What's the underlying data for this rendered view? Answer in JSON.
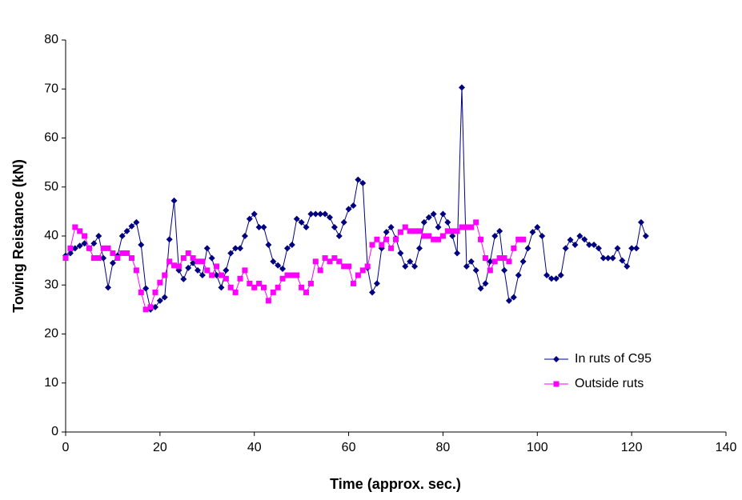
{
  "chart_data": {
    "type": "line",
    "xlabel": "Time (approx. sec.)",
    "ylabel": "Towing Reistance (kN)",
    "xlim": [
      0,
      140
    ],
    "xticks": [
      0,
      20,
      40,
      60,
      80,
      100,
      120,
      140
    ],
    "ylim": [
      0,
      80
    ],
    "yticks": [
      0,
      10,
      20,
      30,
      40,
      50,
      60,
      70,
      80
    ],
    "legend": "lower right",
    "series": [
      {
        "name": "In ruts of C95",
        "color": "#000080",
        "marker": "diamond",
        "x": [
          0,
          1,
          2,
          3,
          4,
          5,
          6,
          7,
          8,
          9,
          10,
          11,
          12,
          13,
          14,
          15,
          16,
          17,
          18,
          19,
          20,
          21,
          22,
          23,
          24,
          25,
          26,
          27,
          28,
          29,
          30,
          31,
          32,
          33,
          34,
          35,
          36,
          37,
          38,
          39,
          40,
          41,
          42,
          43,
          44,
          45,
          46,
          47,
          48,
          49,
          50,
          51,
          52,
          53,
          54,
          55,
          56,
          57,
          58,
          59,
          60,
          61,
          62,
          63,
          64,
          65,
          66,
          67,
          68,
          69,
          70,
          71,
          72,
          73,
          74,
          75,
          76,
          77,
          78,
          79,
          80,
          81,
          82,
          83,
          84,
          85,
          86,
          87,
          88,
          89,
          90,
          91,
          92,
          93,
          94,
          95,
          96,
          97,
          98,
          99,
          100,
          101,
          102,
          103,
          104,
          105,
          106,
          107,
          108,
          109,
          110,
          111,
          112,
          113,
          114,
          115,
          116,
          117,
          118,
          119,
          120,
          121,
          122,
          123
        ],
        "values": [
          36,
          36.5,
          37.5,
          38,
          38.5,
          37.5,
          38.5,
          40,
          35.5,
          29.5,
          34.5,
          36,
          40,
          41,
          42,
          42.8,
          38.2,
          29.3,
          25,
          25.5,
          26.8,
          27.5,
          39.3,
          47.2,
          33,
          31.2,
          33.5,
          34.5,
          33,
          32,
          37.5,
          35.5,
          32,
          29.5,
          33,
          36.5,
          37.5,
          37.5,
          40,
          43.5,
          44.5,
          41.8,
          41.8,
          38.2,
          34.8,
          34,
          33.3,
          37.5,
          38.2,
          43.5,
          42.8,
          41.8,
          44.5,
          44.5,
          44.5,
          44.5,
          43.8,
          41.8,
          40,
          42.8,
          45.5,
          46.2,
          51.5,
          50.8,
          33.5,
          28.5,
          30.3,
          37.5,
          40.8,
          41.8,
          39.5,
          36.5,
          33.8,
          34.8,
          33.8,
          37.5,
          42.8,
          43.8,
          44.5,
          41.8,
          44.5,
          42.8,
          40,
          36.5,
          70.3,
          33.8,
          34.8,
          33,
          29.3,
          30.3,
          34.8,
          40,
          41,
          33,
          26.8,
          27.5,
          32,
          34.8,
          37.5,
          40.8,
          41.8,
          40,
          32,
          31.3,
          31.3,
          32,
          37.5,
          39.2,
          38.2,
          40,
          39.3,
          38.2,
          38.2,
          37.5,
          35.5,
          35.5,
          35.5,
          37.5,
          35,
          33.8,
          37.5,
          37.5,
          42.8,
          40
        ]
      },
      {
        "name": "Outside ruts",
        "color": "#ff00ff",
        "marker": "square",
        "x": [
          0,
          1,
          2,
          3,
          4,
          5,
          6,
          7,
          8,
          9,
          10,
          11,
          12,
          13,
          14,
          15,
          16,
          17,
          18,
          19,
          20,
          21,
          22,
          23,
          24,
          25,
          26,
          27,
          28,
          29,
          30,
          31,
          32,
          33,
          34,
          35,
          36,
          37,
          38,
          39,
          40,
          41,
          42,
          43,
          44,
          45,
          46,
          47,
          48,
          49,
          50,
          51,
          52,
          53,
          54,
          55,
          56,
          57,
          58,
          59,
          60,
          61,
          62,
          63,
          64,
          65,
          66,
          67,
          68,
          69,
          70,
          71,
          72,
          73,
          74,
          75,
          76,
          77,
          78,
          79,
          80,
          81,
          82,
          83,
          84,
          85,
          86,
          87,
          88,
          89,
          90,
          91,
          92,
          93,
          94,
          95,
          96,
          97
        ],
        "values": [
          35.5,
          37.5,
          41.8,
          41,
          40,
          37.5,
          35.5,
          35.5,
          37.5,
          37.5,
          36.5,
          35.5,
          36.5,
          36.5,
          35.5,
          33,
          28.5,
          25,
          25.5,
          28.5,
          30.5,
          32,
          34.8,
          34,
          33.8,
          35.5,
          36.5,
          35.5,
          34.8,
          34.8,
          33,
          32,
          33.8,
          32,
          31.3,
          29.5,
          28.5,
          31.3,
          33,
          30.3,
          29.5,
          30.3,
          29.5,
          26.8,
          28.5,
          29.5,
          31.3,
          32,
          32,
          32,
          29.5,
          28.5,
          30.3,
          34.8,
          33,
          35.5,
          34.8,
          35.5,
          34.8,
          33.8,
          33.8,
          30.3,
          32,
          33,
          33.8,
          38.2,
          39.3,
          38.2,
          39.3,
          37.5,
          39.3,
          40.8,
          41.8,
          41,
          41,
          41,
          40,
          40,
          39.3,
          39.3,
          40,
          41,
          41,
          41,
          41.8,
          41.8,
          41.8,
          42.8,
          39.3,
          35.5,
          33,
          34.8,
          35.5,
          35.5,
          34.8,
          37.5,
          39.3,
          39.3
        ]
      }
    ]
  }
}
